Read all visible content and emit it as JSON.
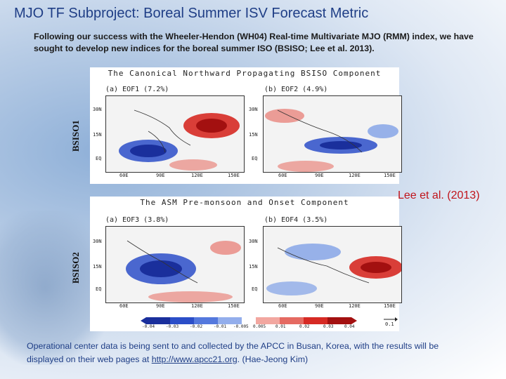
{
  "slide": {
    "title": "MJO TF Subproject: Boreal Summer ISV Forecast Metric",
    "intro": "Following our success with the Wheeler-Hendon (WH04) Real-time Multivariate MJO (RMM) index, we have sought to develop new indices for the boreal summer ISO (BSISO; Lee et al. 2013).",
    "citation": "Lee et al. (2013)",
    "footer_text": "Operational center data is being sent to and collected by the APCC in Busan, Korea, with the results will be displayed on their web pages at ",
    "footer_link": "http://www.apcc21.org",
    "footer_suffix": ".  (Hae-Jeong Kim)"
  },
  "figure": {
    "component1_title": "The Canonical Northward Propagating BSISO Component",
    "component2_title": "The ASM Pre-monsoon and Onset Component",
    "row1_label": "BSISO1",
    "row2_label": "BSISO2",
    "panels": [
      {
        "label": "(a) EOF1 (7.2%)"
      },
      {
        "label": "(b) EOF2 (4.9%)"
      },
      {
        "label": "(a) EOF3 (3.8%)"
      },
      {
        "label": "(b) EOF4 (3.5%)"
      }
    ],
    "lat_ticks": [
      "30N",
      "15N",
      "EQ"
    ],
    "lon_ticks": [
      "60E",
      "90E",
      "120E",
      "150E"
    ],
    "colorbar_values": [
      "-0.04",
      "-0.03",
      "-0.02",
      "-0.01",
      "-0.005",
      "0.005",
      "0.01",
      "0.02",
      "0.03",
      "0.04"
    ],
    "vector_scale": "0.1",
    "colors": {
      "positive": "#d62a24",
      "negative": "#2b4ec8",
      "title": "#1f3e86",
      "citation": "#c0141b"
    }
  }
}
